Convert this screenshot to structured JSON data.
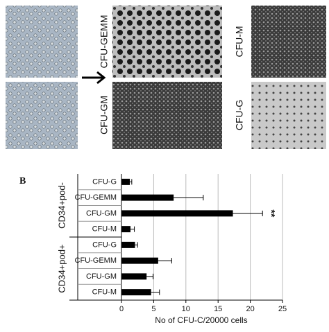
{
  "figure": {
    "panel_labels": [
      "CFU-GEMM",
      "CFU-GM",
      "CFU-M",
      "CFU-G"
    ],
    "section_label": "B"
  },
  "chart_data": {
    "type": "hbar",
    "groups": [
      "CD34+pod-",
      "CD34+pod+"
    ],
    "categories": [
      "CFU-G",
      "CFU-GEMM",
      "CFU-GM",
      "CFU-M",
      "CFU-G",
      "CFU-GEMM",
      "CFU-GM",
      "CFU-M"
    ],
    "group_of": [
      0,
      0,
      0,
      0,
      1,
      1,
      1,
      1
    ],
    "values": [
      1.3,
      8.1,
      17.3,
      1.4,
      2.1,
      5.7,
      3.9,
      4.6
    ],
    "errors": [
      0.3,
      4.6,
      4.6,
      0.6,
      0.4,
      2.1,
      1.0,
      1.3
    ],
    "color": "#000000",
    "xlabel": "No of CFU-C/20000 cells",
    "xlim": [
      0,
      25
    ],
    "xticks": [
      0,
      5,
      10,
      15,
      20,
      25
    ],
    "grid": true,
    "annotations": [
      {
        "text": "**",
        "category_index": 2
      }
    ]
  }
}
